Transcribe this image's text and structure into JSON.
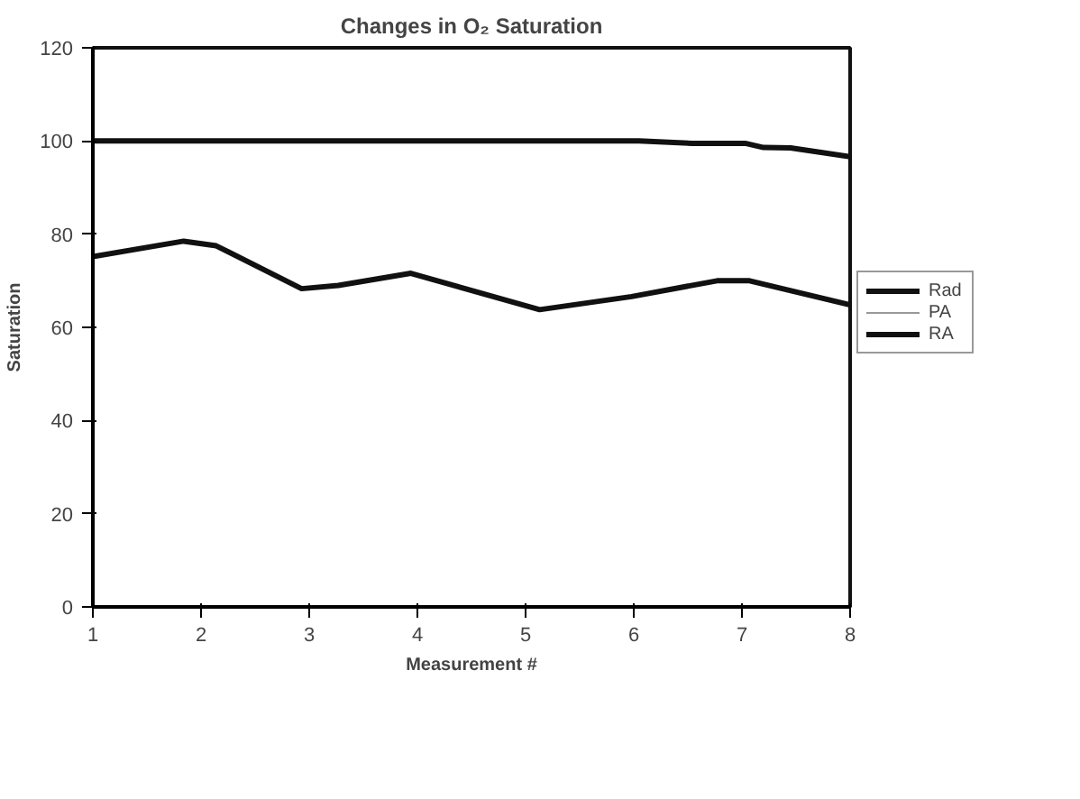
{
  "chart_data": {
    "type": "line",
    "title": "Changes in O₂ Saturation",
    "xlabel": "Measurement #",
    "ylabel": "Saturation",
    "xlim": [
      1,
      8
    ],
    "xticks": [
      1,
      2,
      3,
      4,
      5,
      6,
      7,
      8
    ],
    "ylim": [
      0,
      120
    ],
    "yticks": [
      0,
      20,
      40,
      60,
      80,
      100,
      120
    ],
    "grid": false,
    "legend": "right",
    "marker": "none",
    "line_style": "solid",
    "series": [
      {
        "name": "Rad",
        "color": "#111111",
        "x": [
          1,
          2,
          3,
          4,
          5,
          6.05,
          6.54,
          7.03,
          7.2,
          7.45,
          8
        ],
        "values": [
          100,
          100,
          100,
          100,
          100,
          100,
          99.5,
          99.5,
          98.6,
          98.5,
          96.6
        ]
      },
      {
        "name": "PA",
        "color": "#999999"
      },
      {
        "name": "RA",
        "color": "#111111",
        "x": [
          1,
          1.84,
          2.14,
          2.93,
          3.27,
          3.94,
          5.13,
          5.98,
          6.77,
          7.07,
          8
        ],
        "values": [
          75.2,
          78.5,
          77.5,
          68.3,
          69,
          71.6,
          63.8,
          66.6,
          70,
          70,
          64.8
        ]
      }
    ]
  }
}
